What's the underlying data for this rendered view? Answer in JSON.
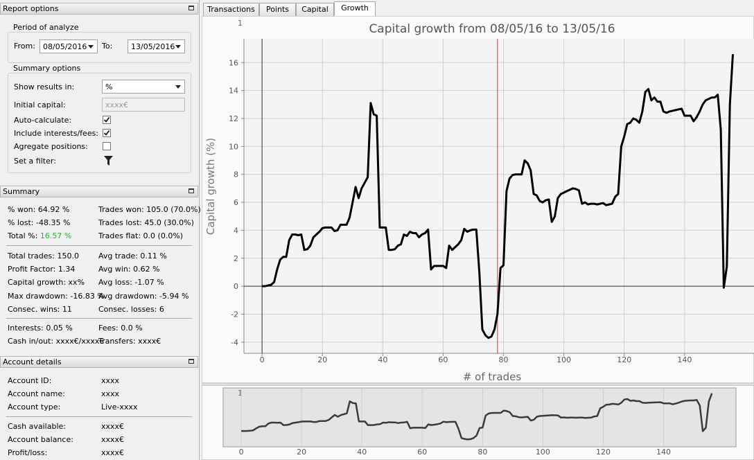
{
  "report_options": {
    "title": "Report options",
    "period": {
      "title": "Period of analyze",
      "from_label": "From:",
      "from": "08/05/2016",
      "to_label": "To:",
      "to": "13/05/2016"
    },
    "summary_options": {
      "title": "Summary options",
      "show_results_label": "Show results in:",
      "show_results": "%",
      "initial_capital_label": "Initial capital:",
      "initial_capital": "xxxx€",
      "auto_calculate_label": "Auto-calculate:",
      "auto_calculate": true,
      "include_fees_label": "Include interests/fees:",
      "include_fees": true,
      "aggregate_label": "Agregate positions:",
      "aggregate": false,
      "filter_label": "Set a filter:"
    }
  },
  "summary": {
    "title": "Summary",
    "sections": [
      [
        [
          {
            "label": "% won:",
            "value": "64.92 %"
          },
          {
            "label": "Trades won:",
            "value": "105.0 (70.0%)"
          }
        ],
        [
          {
            "label": "% lost:",
            "value": "-48.35 %"
          },
          {
            "label": "Trades lost:",
            "value": "45.0 (30.0%)"
          }
        ],
        [
          {
            "label": "Total %:",
            "value": "16.57 %",
            "color": "#2db52d"
          },
          {
            "label": "Trades flat:",
            "value": "0.0 (0.0%)"
          }
        ]
      ],
      [
        [
          {
            "label": "Total trades:",
            "value": "150.0"
          },
          {
            "label": "Avg trade:",
            "value": "0.11 %"
          }
        ],
        [
          {
            "label": "Profit Factor:",
            "value": "1.34"
          },
          {
            "label": "Avg win:",
            "value": "0.62 %"
          }
        ],
        [
          {
            "label": "Capital growth:",
            "value": "xx%"
          },
          {
            "label": "Avg loss:",
            "value": "-1.07 %"
          }
        ],
        [
          {
            "label": "Max drawdown:",
            "value": "-16.83 %"
          },
          {
            "label": "Avg drawdown:",
            "value": "-5.94 %"
          }
        ],
        [
          {
            "label": "Consec. wins:",
            "value": "11"
          },
          {
            "label": "Consec. losses:",
            "value": "6"
          }
        ]
      ],
      [
        [
          {
            "label": "Interests:",
            "value": "0.05 %"
          },
          {
            "label": "Fees:",
            "value": "0.0 %"
          }
        ],
        [
          {
            "label": "Cash in/out:",
            "value": "xxxx€/xxxx€"
          },
          {
            "label": "Transfers:",
            "value": "xxxx€"
          }
        ]
      ]
    ]
  },
  "account": {
    "title": "Account details",
    "sections": [
      [
        {
          "label": "Account ID:",
          "value": "xxxx"
        },
        {
          "label": "Account name:",
          "value": "xxxx"
        },
        {
          "label": "Account type:",
          "value": "Live-xxxx"
        }
      ],
      [
        {
          "label": "Cash available:",
          "value": "xxxx€"
        },
        {
          "label": "Account balance:",
          "value": "xxxx€"
        },
        {
          "label": "Profit/loss:",
          "value": "xxxx€"
        }
      ]
    ]
  },
  "tabs": [
    "Transactions",
    "Points",
    "Capital",
    "Growth"
  ],
  "active_tab": 3,
  "chart_data": {
    "type": "line",
    "title": "Capital growth from 08/05/16 to 13/05/16",
    "corner_label": "1",
    "xlabel": "# of trades",
    "ylabel": "Capital growth (%)",
    "x": [
      0,
      1,
      2,
      3,
      4,
      5,
      6,
      7,
      8,
      9,
      10,
      11,
      12,
      13,
      14,
      15,
      16,
      17,
      18,
      19,
      20,
      21,
      22,
      23,
      24,
      25,
      26,
      27,
      28,
      29,
      30,
      31,
      32,
      33,
      34,
      35,
      36,
      37,
      38,
      39,
      40,
      41,
      42,
      43,
      44,
      45,
      46,
      47,
      48,
      49,
      50,
      51,
      52,
      53,
      54,
      55,
      56,
      57,
      58,
      59,
      60,
      61,
      62,
      63,
      64,
      65,
      66,
      67,
      68,
      69,
      70,
      71,
      72,
      73,
      74,
      75,
      76,
      77,
      78,
      79,
      80,
      81,
      82,
      83,
      84,
      85,
      86,
      87,
      88,
      89,
      90,
      91,
      92,
      93,
      94,
      95,
      96,
      97,
      98,
      99,
      100,
      101,
      102,
      103,
      104,
      105,
      106,
      107,
      108,
      109,
      110,
      111,
      112,
      113,
      114,
      115,
      116,
      117,
      118,
      119,
      120,
      121,
      122,
      123,
      124,
      125,
      126,
      127,
      128,
      129,
      130,
      131,
      132,
      133,
      134,
      135,
      136,
      137,
      138,
      139,
      140,
      141,
      142,
      143,
      144,
      145,
      146,
      147,
      148,
      149,
      150,
      151,
      152,
      153,
      154,
      155,
      156
    ],
    "series": [
      {
        "color": "#000000",
        "values": [
          0,
          0,
          0.05,
          0.1,
          0.3,
          1.2,
          1.9,
          2.1,
          2.1,
          3.3,
          3.7,
          3.7,
          3.65,
          3.7,
          2.6,
          2.65,
          2.9,
          3.5,
          3.7,
          3.9,
          4.15,
          4.2,
          4.2,
          4.2,
          3.95,
          4.0,
          4.4,
          4.4,
          4.4,
          4.9,
          6.0,
          7.1,
          6.3,
          7.0,
          7.4,
          7.8,
          13.1,
          12.3,
          12.2,
          4.2,
          4.2,
          4.2,
          2.6,
          2.6,
          2.65,
          2.9,
          3.0,
          3.7,
          3.6,
          3.9,
          3.8,
          3.8,
          3.5,
          3.7,
          3.8,
          4.05,
          1.2,
          1.45,
          1.45,
          1.45,
          1.45,
          1.3,
          2.9,
          2.6,
          2.8,
          3.0,
          3.3,
          4.1,
          3.9,
          4.0,
          4.05,
          4.05,
          1.0,
          -3.1,
          -3.5,
          -3.7,
          -3.6,
          -3.1,
          -2.0,
          1.3,
          1.5,
          6.8,
          7.7,
          7.95,
          8.0,
          8.0,
          8.0,
          9.0,
          8.8,
          8.3,
          6.6,
          6.5,
          6.1,
          6.0,
          6.15,
          6.2,
          4.6,
          5.0,
          6.3,
          6.6,
          6.7,
          6.8,
          6.9,
          7.0,
          6.95,
          6.85,
          5.9,
          6.0,
          5.85,
          5.9,
          5.9,
          5.85,
          5.9,
          5.95,
          5.8,
          5.85,
          5.9,
          6.4,
          6.6,
          10.0,
          10.7,
          11.6,
          11.7,
          12.0,
          11.9,
          11.7,
          12.5,
          13.9,
          14.1,
          13.3,
          13.5,
          13.2,
          13.2,
          12.5,
          12.4,
          12.5,
          12.55,
          12.6,
          12.65,
          12.7,
          12.2,
          12.2,
          12.2,
          11.8,
          12.1,
          12.5,
          13.0,
          13.3,
          13.4,
          13.5,
          13.5,
          13.7,
          11.2,
          -0.1,
          1.4,
          13.0,
          16.6
        ]
      }
    ],
    "xlim": [
      -6,
      163
    ],
    "ylim": [
      -4.8,
      17.7
    ],
    "xticks": [
      0,
      20,
      40,
      60,
      80,
      100,
      120,
      140
    ],
    "yticks": [
      -4,
      -2,
      0,
      2,
      4,
      6,
      8,
      10,
      12,
      14,
      16
    ],
    "grid": true,
    "marker_x": 78,
    "marker_color": "#e03030",
    "overview": {
      "xlim": [
        -6,
        164
      ],
      "ylim": [
        -7,
        19
      ]
    }
  }
}
